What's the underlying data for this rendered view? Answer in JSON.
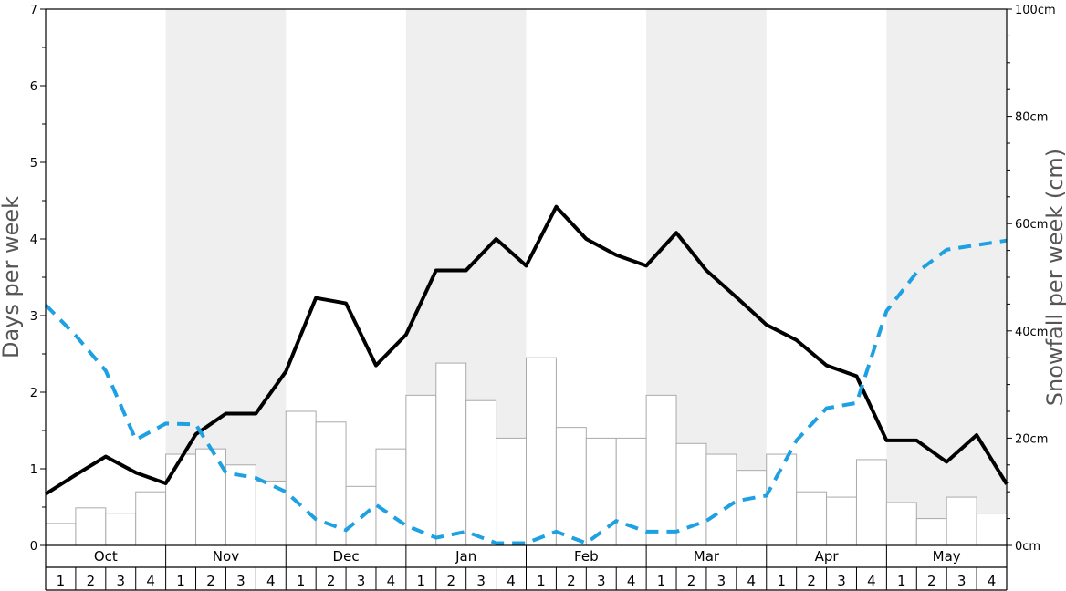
{
  "chart_data": {
    "type": "bar+line",
    "y_left": {
      "label": "Days per week",
      "min": 0,
      "max": 7,
      "ticks": [
        "0",
        "1",
        "2",
        "3",
        "4",
        "5",
        "6",
        "7"
      ]
    },
    "y_right": {
      "label": "Snowfall per week (cm)",
      "min": 0,
      "max": 100,
      "ticks": [
        "0cm",
        "20cm",
        "40cm",
        "60cm",
        "80cm",
        "100cm"
      ]
    },
    "months": [
      "Oct",
      "Nov",
      "Dec",
      "Jan",
      "Feb",
      "Mar",
      "Apr",
      "May"
    ],
    "weeks": [
      "1",
      "2",
      "3",
      "4"
    ],
    "shaded_months": [
      "Nov",
      "Jan",
      "Mar",
      "May"
    ],
    "snowfall_cm": [
      4.1,
      7,
      6,
      10,
      17,
      18,
      15,
      12,
      25,
      23,
      11,
      18,
      28,
      34,
      27,
      20,
      35,
      22,
      20,
      20,
      28,
      19,
      17,
      14,
      17,
      10,
      9,
      16,
      8,
      5,
      9,
      6
    ],
    "series": [
      {
        "name": "",
        "style": "solid",
        "color": "#000000",
        "axis": "left",
        "values": [
          0.67,
          0.92,
          1.16,
          0.95,
          0.81,
          1.45,
          1.72,
          1.72,
          2.27,
          3.23,
          3.16,
          2.35,
          2.75,
          3.59,
          3.59,
          4.0,
          3.65,
          4.42,
          4.0,
          3.79,
          3.65,
          4.08,
          3.59,
          3.24,
          2.88,
          2.68,
          2.35,
          2.21,
          1.37,
          1.37,
          1.09,
          1.44,
          0.8
        ]
      },
      {
        "name": "",
        "style": "dashed",
        "color": "#1da1e2",
        "axis": "left",
        "values": [
          3.14,
          2.74,
          2.28,
          1.38,
          1.59,
          1.58,
          0.95,
          0.88,
          0.7,
          0.34,
          0.2,
          0.53,
          0.26,
          0.1,
          0.18,
          0.03,
          0.03,
          0.18,
          0.03,
          0.32,
          0.18,
          0.18,
          0.32,
          0.58,
          0.65,
          1.37,
          1.79,
          1.86,
          3.06,
          3.56,
          3.86,
          3.92,
          3.98
        ]
      }
    ]
  }
}
